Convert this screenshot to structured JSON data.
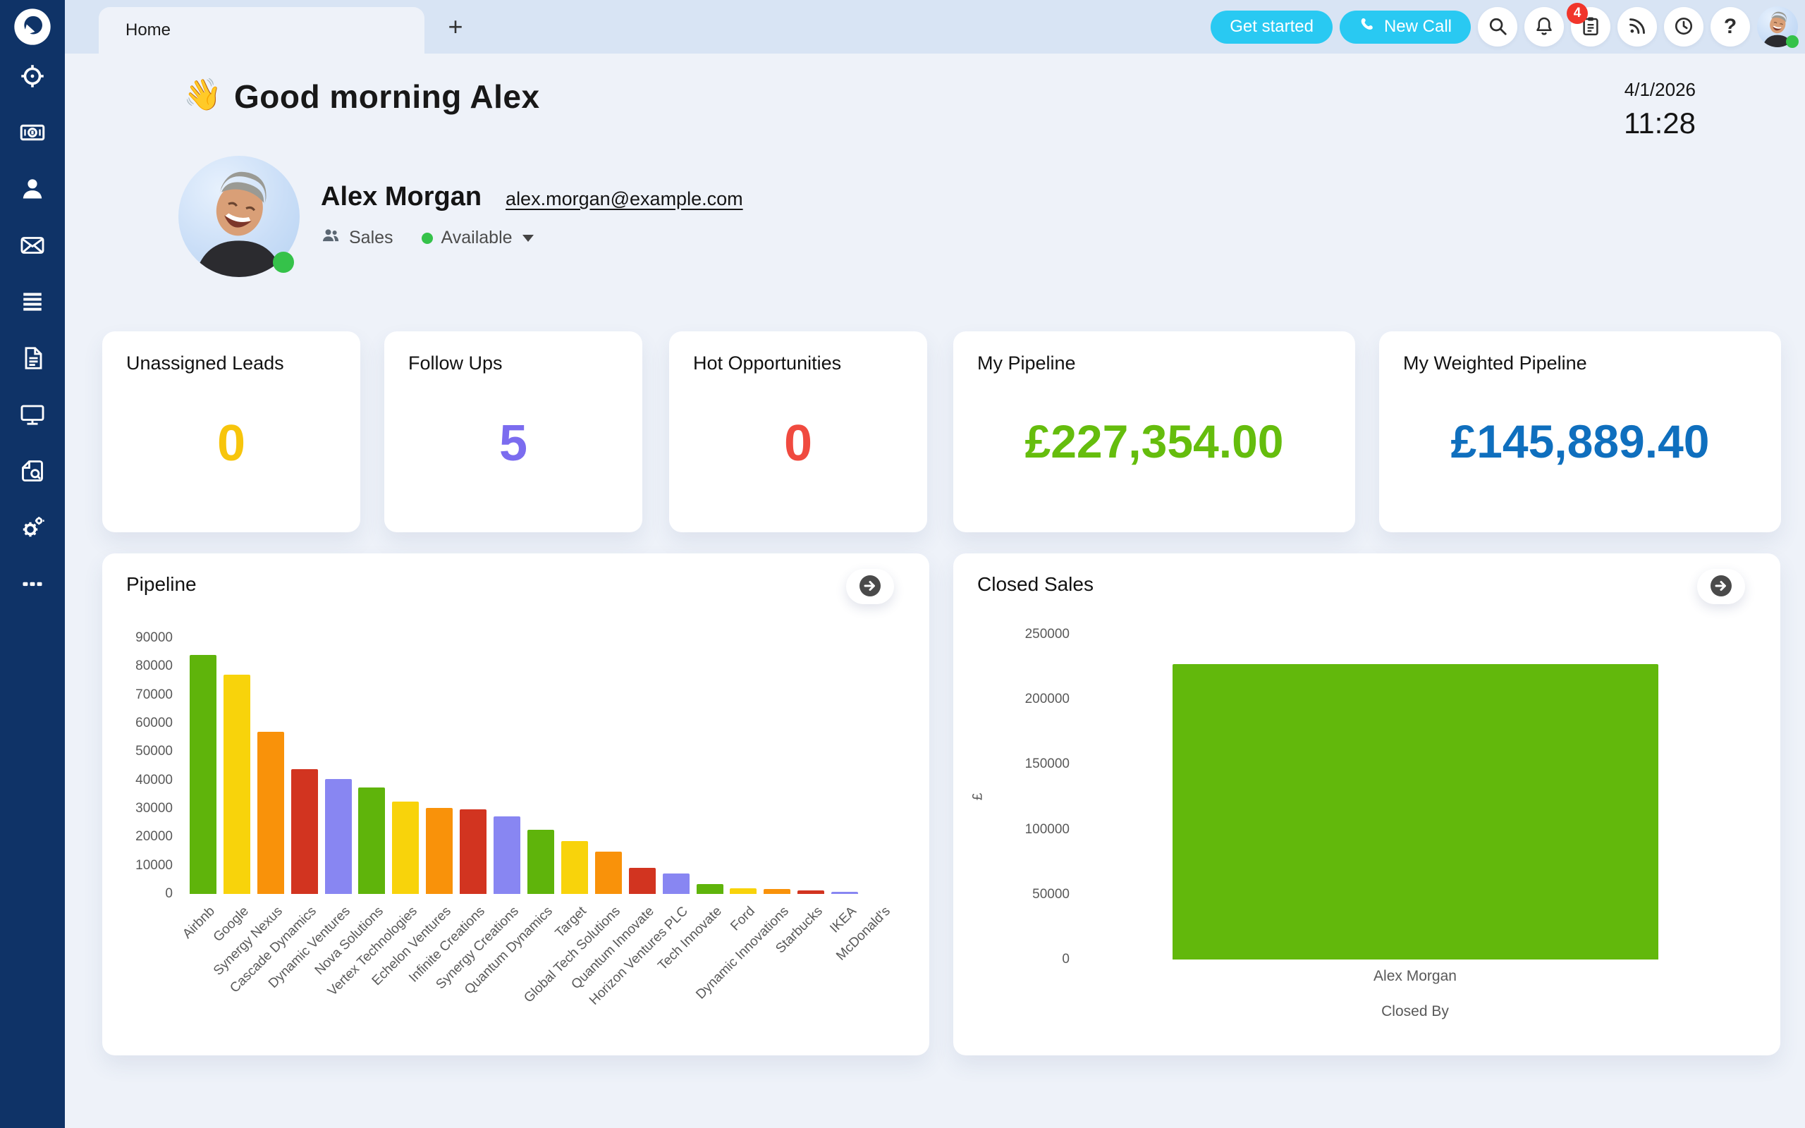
{
  "app": {
    "logo_icon": "speech-bubble-logo",
    "brand_navy": "#0F3367"
  },
  "topbar": {
    "tab_label": "Home",
    "new_tab_glyph": "+",
    "get_started_label": "Get started",
    "new_call_label": "New Call",
    "notification_count": "4",
    "help_glyph": "?",
    "accent_color": "#29C9F2",
    "icons": [
      "search-icon",
      "bell-icon",
      "clipboard-icon",
      "rss-feed-icon",
      "clock-icon",
      "help-icon",
      "user-avatar"
    ]
  },
  "sidebar": {
    "icons": [
      "target-icon",
      "banknote-icon",
      "person-icon",
      "envelope-icon",
      "list-icon",
      "document-icon",
      "monitor-icon",
      "quotes-icon",
      "gears-icon",
      "ellipsis-icon"
    ]
  },
  "header": {
    "wave_emoji": "👋",
    "greeting": "Good morning Alex",
    "date": "4/1/2026",
    "time": "11:28"
  },
  "profile": {
    "name": "Alex Morgan",
    "email": "alex.morgan@example.com",
    "team": "Sales",
    "status": "Available",
    "status_color": "#35C24A"
  },
  "stats": [
    {
      "label": "Unassigned Leads",
      "value": "0",
      "color": "#F7C50C",
      "size": 72
    },
    {
      "label": "Follow Ups",
      "value": "5",
      "color": "#7B6CEF",
      "size": 72
    },
    {
      "label": "Hot Opportunities",
      "value": "0",
      "color": "#F04A3F",
      "size": 72
    },
    {
      "label": "My Pipeline",
      "value": "£227,354.00",
      "color": "#65BD0D",
      "size": 66
    },
    {
      "label": "My Weighted Pipeline",
      "value": "£145,889.40",
      "color": "#0F6FBE",
      "size": 66
    }
  ],
  "chart_data": [
    {
      "type": "bar",
      "title": "Pipeline",
      "categories": [
        "Airbnb",
        "Google",
        "Synergy Nexus",
        "Cascade Dynamics",
        "Dynamic Ventures",
        "Nova Solutions",
        "Vertex Technologies",
        "Echelon Ventures",
        "Infinite Creations",
        "Synergy Creations",
        "Quantum Dynamics",
        "Target",
        "Global Tech Solutions",
        "Quantum Innovate",
        "Horizon Ventures PLC",
        "Tech Innovate",
        "Ford",
        "Dynamic Innovations",
        "Starbucks",
        "IKEA",
        "McDonald's"
      ],
      "values": [
        84000,
        77000,
        57000,
        44000,
        40500,
        37500,
        32500,
        30200,
        29800,
        27200,
        22500,
        18500,
        15000,
        9200,
        7300,
        3500,
        2100,
        1700,
        1200,
        800,
        0
      ],
      "bar_colors": [
        "#5FB40B",
        "#F8D30B",
        "#F9920A",
        "#D23420",
        "#8886F2"
      ],
      "xlabel": "",
      "ylabel": "",
      "ylim": [
        0,
        90000
      ],
      "ytick_step": 10000,
      "grid": false,
      "legend": "none"
    },
    {
      "type": "bar",
      "title": "Closed Sales",
      "categories": [
        "Alex Morgan"
      ],
      "values": [
        227354
      ],
      "bar_colors": [
        "#62B80C"
      ],
      "xlabel": "Closed By",
      "ylabel": "£",
      "ylim": [
        0,
        250000
      ],
      "ytick_step": 50000,
      "grid": false,
      "legend": "none"
    }
  ]
}
